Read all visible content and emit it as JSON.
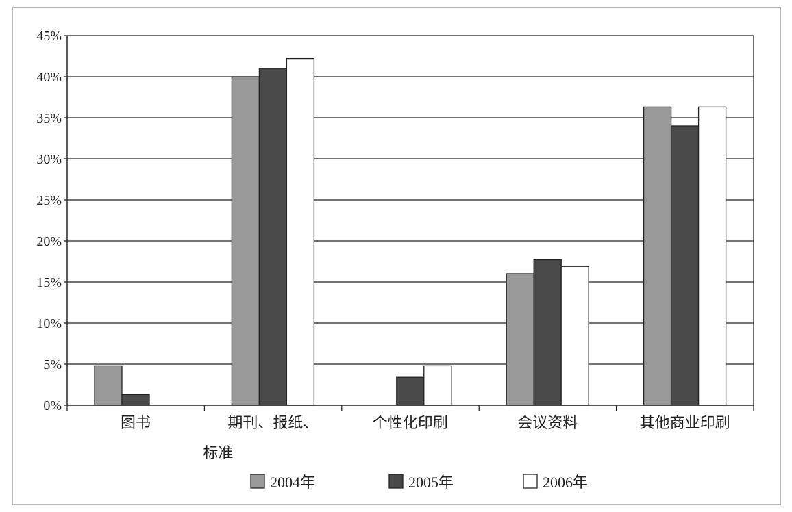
{
  "chart_data": {
    "type": "bar",
    "title": "",
    "xlabel": "",
    "ylabel": "",
    "ylim": [
      0,
      45
    ],
    "yticks": [
      "0%",
      "5%",
      "10%",
      "15%",
      "20%",
      "25%",
      "30%",
      "35%",
      "40%",
      "45%"
    ],
    "grid": true,
    "legend_position": "bottom",
    "categories": [
      [
        "图书"
      ],
      [
        "期刊、报纸、",
        "标准"
      ],
      [
        "个性化印刷"
      ],
      [
        "会议资料"
      ],
      [
        "其他商业印刷"
      ]
    ],
    "series": [
      {
        "name": "2004年",
        "color": "#999999",
        "values": [
          4.8,
          40,
          null,
          16,
          36.3
        ]
      },
      {
        "name": "2005年",
        "color": "#4a4a4a",
        "values": [
          1.3,
          41,
          3.4,
          17.7,
          34
        ]
      },
      {
        "name": "2006年",
        "color": "#ffffff",
        "values": [
          null,
          42.2,
          4.8,
          16.9,
          36.3
        ]
      }
    ]
  }
}
